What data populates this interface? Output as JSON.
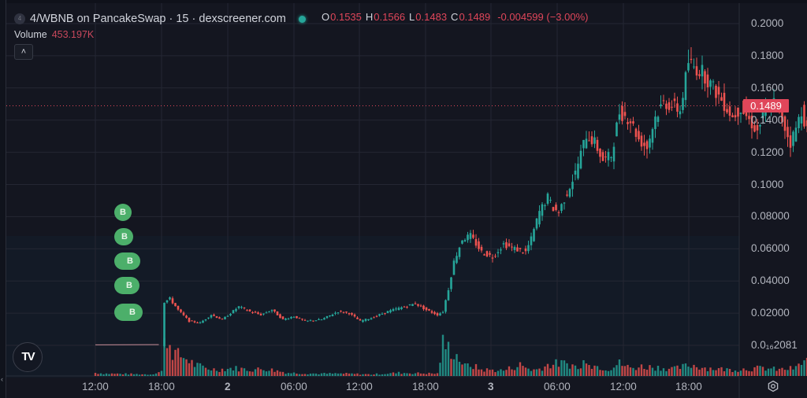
{
  "header": {
    "symbol_icon_text": "4",
    "title": "4/WBNB on PancakeSwap · 15 · dexscreener.com",
    "status_color": "#26a69a"
  },
  "ohlc": {
    "o_label": "O",
    "o": "0.1535",
    "h_label": "H",
    "h": "0.1566",
    "l_label": "L",
    "l": "0.1483",
    "c_label": "C",
    "c": "0.1489",
    "change": "-0.004599 (−3.00%)"
  },
  "volume": {
    "label": "Volume",
    "value": "453.197K"
  },
  "collapse_button": "˄",
  "last_price_tag": "0.1489",
  "buy_marker_label": "B",
  "logo_text": "TV",
  "colors": {
    "up": "#26a69a",
    "down": "#ef5350",
    "background": "#141620",
    "grid": "#242733",
    "last_price": "#e0465a",
    "buy_marker": "#4caf6a"
  },
  "chart_data": {
    "type": "candlestick",
    "title": "4/WBNB on PancakeSwap · 15 · dexscreener.com",
    "interval": "15m",
    "y_axis": {
      "labels": [
        "0.2000",
        "0.1800",
        "0.1600",
        "0.1400",
        "0.1200",
        "0.1000",
        "0.08000",
        "0.06000",
        "0.04000",
        "0.02000",
        "0.0₁₆2081"
      ],
      "values": [
        0.2,
        0.18,
        0.16,
        0.14,
        0.12,
        0.1,
        0.08,
        0.06,
        0.04,
        0.02,
        0.0
      ],
      "range": [
        0.0,
        0.2
      ]
    },
    "x_axis": {
      "labels": [
        "12:00",
        "18:00",
        "2",
        "06:00",
        "12:00",
        "18:00",
        "3",
        "06:00",
        "12:00",
        "18:00"
      ],
      "bold": [
        false,
        false,
        true,
        false,
        false,
        false,
        true,
        false,
        false,
        false
      ]
    },
    "last_price": 0.1489,
    "price_path": [
      [
        0,
        0.0001
      ],
      [
        24,
        0.0002
      ],
      [
        25,
        0.027
      ],
      [
        27,
        0.029
      ],
      [
        30,
        0.022
      ],
      [
        34,
        0.015
      ],
      [
        38,
        0.014
      ],
      [
        42,
        0.019
      ],
      [
        46,
        0.016
      ],
      [
        52,
        0.024
      ],
      [
        56,
        0.021
      ],
      [
        60,
        0.019
      ],
      [
        64,
        0.022
      ],
      [
        68,
        0.016
      ],
      [
        72,
        0.018
      ],
      [
        76,
        0.015
      ],
      [
        82,
        0.016
      ],
      [
        88,
        0.021
      ],
      [
        92,
        0.02
      ],
      [
        96,
        0.015
      ],
      [
        100,
        0.017
      ],
      [
        106,
        0.021
      ],
      [
        112,
        0.024
      ],
      [
        116,
        0.026
      ],
      [
        120,
        0.022
      ],
      [
        124,
        0.019
      ],
      [
        126,
        0.021
      ],
      [
        128,
        0.035
      ],
      [
        130,
        0.052
      ],
      [
        133,
        0.066
      ],
      [
        136,
        0.068
      ],
      [
        140,
        0.058
      ],
      [
        144,
        0.055
      ],
      [
        148,
        0.063
      ],
      [
        152,
        0.06
      ],
      [
        156,
        0.058
      ],
      [
        158,
        0.066
      ],
      [
        161,
        0.083
      ],
      [
        164,
        0.092
      ],
      [
        166,
        0.085
      ],
      [
        168,
        0.083
      ],
      [
        171,
        0.095
      ],
      [
        174,
        0.107
      ],
      [
        178,
        0.131
      ],
      [
        181,
        0.126
      ],
      [
        184,
        0.115
      ],
      [
        187,
        0.118
      ],
      [
        190,
        0.145
      ],
      [
        194,
        0.14
      ],
      [
        197,
        0.128
      ],
      [
        200,
        0.123
      ],
      [
        203,
        0.142
      ],
      [
        206,
        0.151
      ],
      [
        209,
        0.149
      ],
      [
        212,
        0.146
      ],
      [
        215,
        0.176
      ],
      [
        217,
        0.173
      ],
      [
        220,
        0.17
      ],
      [
        224,
        0.16
      ],
      [
        228,
        0.15
      ],
      [
        231,
        0.142
      ],
      [
        234,
        0.148
      ],
      [
        237,
        0.14
      ],
      [
        240,
        0.133
      ],
      [
        243,
        0.147
      ],
      [
        246,
        0.151
      ],
      [
        249,
        0.14
      ],
      [
        252,
        0.126
      ],
      [
        254,
        0.135
      ],
      [
        256,
        0.146
      ],
      [
        259,
        0.128
      ],
      [
        262,
        0.132
      ],
      [
        265,
        0.14
      ],
      [
        268,
        0.148
      ],
      [
        271,
        0.1489
      ]
    ],
    "volume_path": [
      [
        0,
        4
      ],
      [
        4,
        3
      ],
      [
        20,
        2
      ],
      [
        24,
        6
      ],
      [
        25,
        40
      ],
      [
        26,
        50
      ],
      [
        28,
        32
      ],
      [
        30,
        26
      ],
      [
        32,
        24
      ],
      [
        34,
        20
      ],
      [
        36,
        14
      ],
      [
        40,
        10
      ],
      [
        44,
        8
      ],
      [
        50,
        10
      ],
      [
        56,
        8
      ],
      [
        62,
        9
      ],
      [
        70,
        4
      ],
      [
        80,
        3
      ],
      [
        90,
        3
      ],
      [
        100,
        2
      ],
      [
        110,
        4
      ],
      [
        124,
        3
      ],
      [
        126,
        40
      ],
      [
        128,
        35
      ],
      [
        130,
        30
      ],
      [
        132,
        22
      ],
      [
        134,
        12
      ],
      [
        136,
        14
      ],
      [
        140,
        8
      ],
      [
        148,
        7
      ],
      [
        154,
        14
      ],
      [
        158,
        8
      ],
      [
        160,
        8
      ],
      [
        164,
        14
      ],
      [
        168,
        16
      ],
      [
        172,
        15
      ],
      [
        176,
        9
      ],
      [
        178,
        26
      ],
      [
        180,
        14
      ],
      [
        186,
        9
      ],
      [
        190,
        16
      ],
      [
        194,
        10
      ],
      [
        198,
        12
      ],
      [
        204,
        11
      ],
      [
        210,
        9
      ],
      [
        216,
        14
      ],
      [
        222,
        10
      ],
      [
        230,
        8
      ],
      [
        236,
        9
      ],
      [
        242,
        10
      ],
      [
        248,
        8
      ],
      [
        254,
        10
      ],
      [
        258,
        22
      ],
      [
        262,
        12
      ],
      [
        266,
        8
      ],
      [
        271,
        5
      ]
    ],
    "buy_markers_count": 5
  }
}
